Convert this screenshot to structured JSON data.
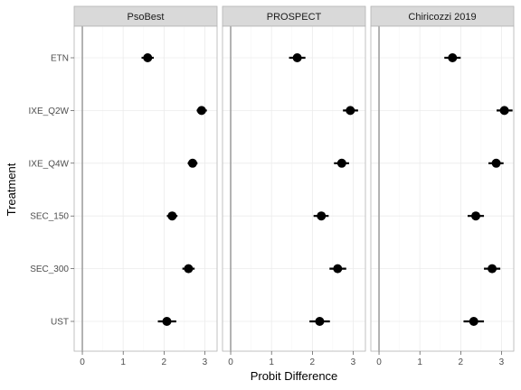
{
  "chart_data": {
    "type": "scatter",
    "xlabel": "Probit Difference",
    "ylabel": "Treatment",
    "xlim": [
      -0.2,
      3.3
    ],
    "x_ticks": [
      0,
      1,
      2,
      3
    ],
    "x_tick_labels": [
      "0",
      "1",
      "2",
      "3"
    ],
    "categories": [
      "ETN",
      "IXE_Q2W",
      "IXE_Q4W",
      "SEC_150",
      "SEC_300",
      "UST"
    ],
    "reference_line": 0,
    "grid": true,
    "colors": {
      "point": "#000000",
      "panel_border": "#b3b3b3",
      "strip_fill": "#d9d9d9",
      "grid": "#ebebeb",
      "ref_line": "#a0a0a0"
    },
    "panels": [
      {
        "title": "PsoBest",
        "points": [
          {
            "category": "ETN",
            "x": 1.6,
            "lo": 1.45,
            "hi": 1.75
          },
          {
            "category": "IXE_Q2W",
            "x": 2.92,
            "lo": 2.8,
            "hi": 3.05
          },
          {
            "category": "IXE_Q4W",
            "x": 2.7,
            "lo": 2.58,
            "hi": 2.82
          },
          {
            "category": "SEC_150",
            "x": 2.2,
            "lo": 2.07,
            "hi": 2.33
          },
          {
            "category": "SEC_300",
            "x": 2.6,
            "lo": 2.45,
            "hi": 2.75
          },
          {
            "category": "UST",
            "x": 2.07,
            "lo": 1.85,
            "hi": 2.3
          }
        ]
      },
      {
        "title": "PROSPECT",
        "points": [
          {
            "category": "ETN",
            "x": 1.63,
            "lo": 1.43,
            "hi": 1.83
          },
          {
            "category": "IXE_Q2W",
            "x": 2.93,
            "lo": 2.75,
            "hi": 3.12
          },
          {
            "category": "IXE_Q4W",
            "x": 2.72,
            "lo": 2.53,
            "hi": 2.9
          },
          {
            "category": "SEC_150",
            "x": 2.22,
            "lo": 2.03,
            "hi": 2.4
          },
          {
            "category": "SEC_300",
            "x": 2.62,
            "lo": 2.42,
            "hi": 2.83
          },
          {
            "category": "UST",
            "x": 2.18,
            "lo": 1.93,
            "hi": 2.43
          }
        ]
      },
      {
        "title": "Chiricozzi 2019",
        "points": [
          {
            "category": "ETN",
            "x": 1.8,
            "lo": 1.6,
            "hi": 2.0
          },
          {
            "category": "IXE_Q2W",
            "x": 3.07,
            "lo": 2.88,
            "hi": 3.27
          },
          {
            "category": "IXE_Q4W",
            "x": 2.87,
            "lo": 2.68,
            "hi": 3.05
          },
          {
            "category": "SEC_150",
            "x": 2.37,
            "lo": 2.17,
            "hi": 2.57
          },
          {
            "category": "SEC_300",
            "x": 2.77,
            "lo": 2.57,
            "hi": 2.97
          },
          {
            "category": "UST",
            "x": 2.32,
            "lo": 2.07,
            "hi": 2.57
          }
        ]
      }
    ]
  }
}
